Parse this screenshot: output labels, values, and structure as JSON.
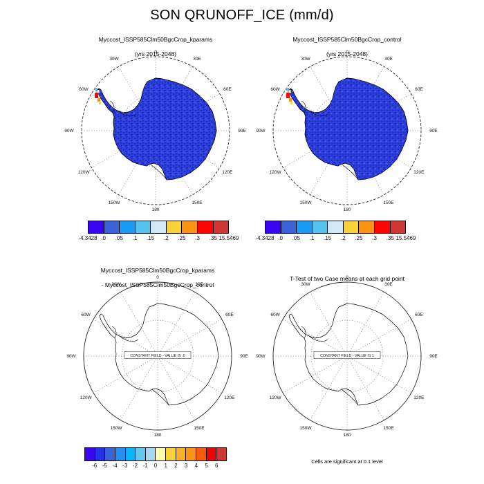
{
  "title": "SON QRUNOFF_ICE (mm/d)",
  "panels": {
    "top_left": {
      "title1": "Myccost_ISSP585Clm50BgcCrop_kparams",
      "title2": "(yrs 2015-2048)"
    },
    "top_right": {
      "title1": "Myccost_ISSP585Clm50BgcCrop_control",
      "title2": "(yrs 2015-2048)"
    },
    "bottom_left": {
      "title1": "Myccost_ISSP585Clm50BgcCrop_kparams",
      "title2": "- Myccost_ISSP585Clm50BgcCrop_control",
      "overlay": "CONSTANT FIELD - VALUE IS .0"
    },
    "bottom_right": {
      "title1": "T-Test of two Case means at each grid point",
      "overlay": "CONSTANT FIELD - VALUE IS 1",
      "footnote": "Cells are significant at 0.1 level"
    }
  },
  "maps": {
    "lon_labels": [
      {
        "t": "0",
        "a": 0
      },
      {
        "t": "30E",
        "a": 30
      },
      {
        "t": "60E",
        "a": 60
      },
      {
        "t": "90E",
        "a": 90
      },
      {
        "t": "120E",
        "a": 120
      },
      {
        "t": "150E",
        "a": 150
      },
      {
        "t": "180",
        "a": 180
      },
      {
        "t": "150W",
        "a": 210
      },
      {
        "t": "120W",
        "a": 240
      },
      {
        "t": "90W",
        "a": 270
      },
      {
        "t": "60W",
        "a": 300
      },
      {
        "t": "30W",
        "a": 330
      }
    ],
    "land_color": "#2f3fd9",
    "coast_color": "#000000"
  },
  "colorbars": {
    "runoff": {
      "label_mode": "edges",
      "labels": [
        "-4.3428",
        ".0",
        ".05",
        ".1",
        ".15",
        ".2",
        ".25",
        ".3",
        ".35",
        "15.5469"
      ],
      "colors": [
        "#3b06ef",
        "#3a62d9",
        "#189bf2",
        "#55c3f0",
        "#d3e9f7",
        "#fbd23a",
        "#fb9415",
        "#fb0404",
        "#cf3735"
      ]
    },
    "diff": {
      "label_mode": "internal",
      "labels": [
        "-6",
        "-5",
        "-4",
        "-3",
        "-2",
        "-1",
        "0",
        "1",
        "2",
        "3",
        "4",
        "5",
        "6"
      ],
      "colors": [
        "#3b06ef",
        "#2132e8",
        "#3a62d9",
        "#2491f5",
        "#0ab4fa",
        "#62c6ef",
        "#a8d8f0",
        "#fdfdad",
        "#fbd23a",
        "#fdb123",
        "#fb9415",
        "#fb5a09",
        "#ee0505",
        "#cf3735"
      ]
    }
  },
  "chart_data": [
    {
      "type": "heatmap",
      "panel": "top_left",
      "title": "Myccost_ISSP585Clm50BgcCrop_kparams (yrs 2015-2048)",
      "variable": "QRUNOFF_ICE",
      "units": "mm/d",
      "season": "SON",
      "projection": "antarctic_polar_stereographic",
      "levels": [
        -4.3428,
        0,
        0.05,
        0.1,
        0.15,
        0.2,
        0.25,
        0.3,
        0.35,
        15.5469
      ],
      "colors": [
        "#3b06ef",
        "#3a62d9",
        "#189bf2",
        "#55c3f0",
        "#d3e9f7",
        "#fbd23a",
        "#fb9415",
        "#fb0404",
        "#cf3735"
      ]
    },
    {
      "type": "heatmap",
      "panel": "top_right",
      "title": "Myccost_ISSP585Clm50BgcCrop_control (yrs 2015-2048)",
      "variable": "QRUNOFF_ICE",
      "units": "mm/d",
      "season": "SON",
      "projection": "antarctic_polar_stereographic",
      "levels": [
        -4.3428,
        0,
        0.05,
        0.1,
        0.15,
        0.2,
        0.25,
        0.3,
        0.35,
        15.5469
      ],
      "colors": [
        "#3b06ef",
        "#3a62d9",
        "#189bf2",
        "#55c3f0",
        "#d3e9f7",
        "#fbd23a",
        "#fb9415",
        "#fb0404",
        "#cf3735"
      ]
    },
    {
      "type": "heatmap",
      "panel": "bottom_left",
      "title": "Myccost_ISSP585Clm50BgcCrop_kparams - Myccost_ISSP585Clm50BgcCrop_control",
      "annotation": "CONSTANT FIELD - VALUE IS .0",
      "levels": [
        -6,
        -5,
        -4,
        -3,
        -2,
        -1,
        0,
        1,
        2,
        3,
        4,
        5,
        6
      ],
      "colors": [
        "#3b06ef",
        "#2132e8",
        "#3a62d9",
        "#2491f5",
        "#0ab4fa",
        "#62c6ef",
        "#a8d8f0",
        "#fdfdad",
        "#fbd23a",
        "#fdb123",
        "#fb9415",
        "#fb5a09",
        "#ee0505",
        "#cf3735"
      ]
    },
    {
      "type": "heatmap",
      "panel": "bottom_right",
      "title": "T-Test of two Case means at each grid point",
      "annotation": "CONSTANT FIELD - VALUE IS 1",
      "note": "Cells are significant at 0.1 level"
    }
  ]
}
